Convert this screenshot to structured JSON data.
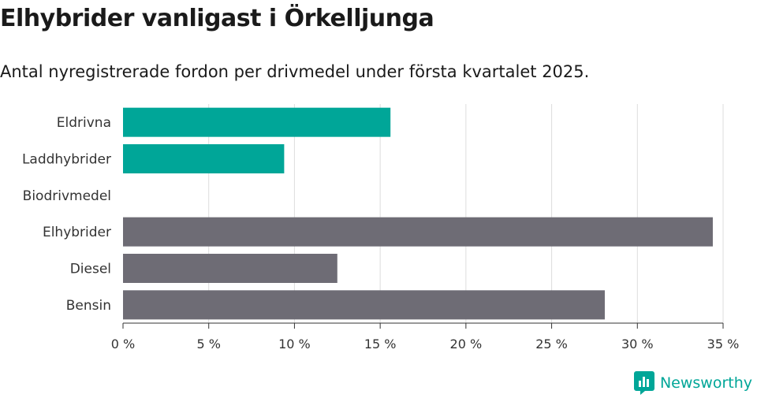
{
  "title": "Elhybrider vanligast i Örkelljunga",
  "subtitle": "Antal nyregistrerade fordon per drivmedel under första kvartalet 2025.",
  "brand": {
    "name": "Newsworthy",
    "icon": "newsworthy-logo-icon"
  },
  "colors": {
    "highlight": "#00a698",
    "default": "#6e6c75",
    "grid": "#dddddd",
    "text": "#333333"
  },
  "chart_data": {
    "type": "bar",
    "orientation": "horizontal",
    "categories": [
      "Eldrivna",
      "Laddhybrider",
      "Biodrivmedel",
      "Elhybrider",
      "Diesel",
      "Bensin"
    ],
    "values": [
      15.6,
      9.4,
      0,
      34.4,
      12.5,
      28.1
    ],
    "bar_colors": [
      "#00a698",
      "#00a698",
      "#00a698",
      "#6e6c75",
      "#6e6c75",
      "#6e6c75"
    ],
    "xlim": [
      0,
      35
    ],
    "xticks": [
      0,
      5,
      10,
      15,
      20,
      25,
      30,
      35
    ],
    "tick_labels": [
      "0 %",
      "5 %",
      "10 %",
      "15 %",
      "20 %",
      "25 %",
      "30 %",
      "35 %"
    ],
    "xlabel": "",
    "ylabel": "",
    "grid": true,
    "legend": "none"
  }
}
